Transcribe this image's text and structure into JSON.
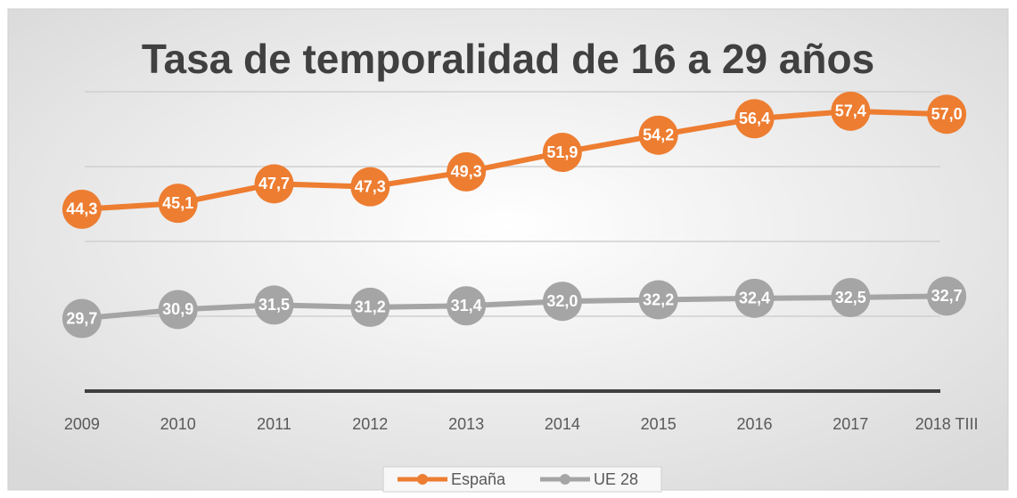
{
  "chart_data": {
    "type": "line",
    "title": "Tasa de temporalidad de 16 a 29 años",
    "categories": [
      "2009",
      "2010",
      "2011",
      "2012",
      "2013",
      "2014",
      "2015",
      "2016",
      "2017",
      "2018 TIII"
    ],
    "series": [
      {
        "name": "España",
        "color": "#ED7D31",
        "values": [
          44.3,
          45.1,
          47.7,
          47.3,
          49.3,
          51.9,
          54.2,
          56.4,
          57.4,
          57.0
        ],
        "value_labels": [
          "44,3",
          "45,1",
          "47,7",
          "47,3",
          "49,3",
          "51,9",
          "54,2",
          "56,4",
          "57,4",
          "57,0"
        ]
      },
      {
        "name": "UE 28",
        "color": "#A5A5A5",
        "values": [
          29.7,
          30.9,
          31.5,
          31.2,
          31.4,
          32.0,
          32.2,
          32.4,
          32.5,
          32.7
        ],
        "value_labels": [
          "29,7",
          "30,9",
          "31,5",
          "31,2",
          "31,4",
          "32,0",
          "32,2",
          "32,4",
          "32,5",
          "32,7"
        ]
      }
    ],
    "ylim": [
      20,
      60
    ],
    "yticks": [
      20,
      30,
      40,
      50,
      60
    ],
    "grid": true,
    "legend": "bottom"
  }
}
